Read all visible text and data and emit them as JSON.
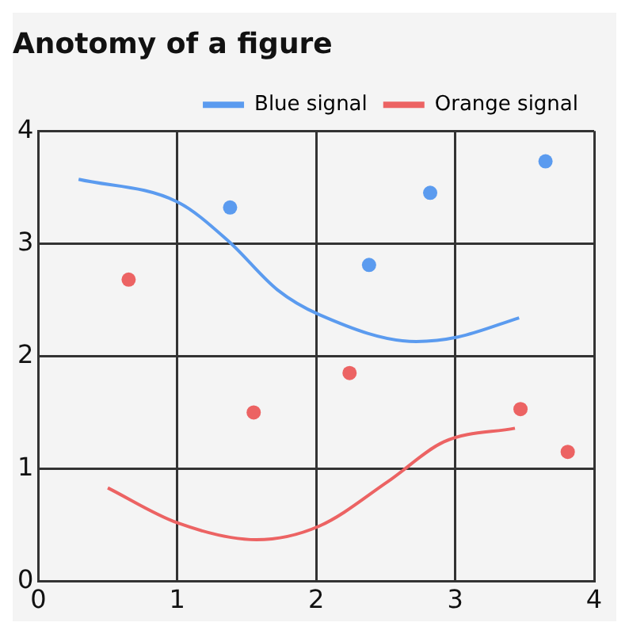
{
  "chart_data": {
    "type": "line",
    "title": "Anotomy of a figure",
    "xlim": [
      0,
      4
    ],
    "ylim": [
      0,
      4
    ],
    "xticks": [
      0,
      1,
      2,
      3,
      4
    ],
    "yticks": [
      0,
      1,
      2,
      3,
      4
    ],
    "grid": true,
    "legend": "top right",
    "series": [
      {
        "name": "Blue signal",
        "color": "#5b9bef",
        "marker": "none",
        "x": [
          0.29,
          1.0,
          1.37,
          1.72,
          2.02,
          2.72,
          3.02,
          3.46
        ],
        "values": [
          3.57,
          3.37,
          3.02,
          2.59,
          2.37,
          2.13,
          2.17,
          2.34
        ]
      },
      {
        "name": "Orange signal",
        "color": "#ec6363",
        "marker": "none",
        "x": [
          0.5,
          1.0,
          1.57,
          2.02,
          2.52,
          2.92,
          3.43
        ],
        "values": [
          0.83,
          0.52,
          0.37,
          0.49,
          0.89,
          1.24,
          1.36
        ]
      },
      {
        "type": "scatter",
        "color": "#5b9bef",
        "marker": "circle",
        "x": [
          1.38,
          2.38,
          2.82,
          3.65
        ],
        "values": [
          3.32,
          2.81,
          3.45,
          3.73
        ]
      },
      {
        "type": "scatter",
        "color": "#ec6363",
        "marker": "circle",
        "x": [
          0.65,
          1.55,
          2.24,
          3.47,
          3.81
        ],
        "values": [
          2.68,
          1.5,
          1.85,
          1.53,
          1.15
        ]
      }
    ]
  }
}
